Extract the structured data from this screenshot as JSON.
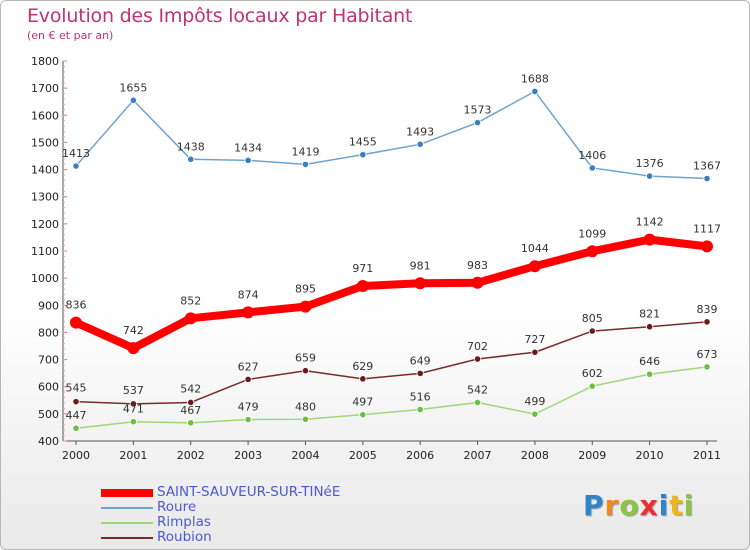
{
  "title": "Evolution des Impôts locaux par Habitant",
  "subtitle": "(en € et par an)",
  "chart_data": {
    "type": "line",
    "x": [
      "2000",
      "2001",
      "2002",
      "2003",
      "2004",
      "2005",
      "2006",
      "2007",
      "2008",
      "2009",
      "2010",
      "2011"
    ],
    "ylim": [
      400,
      1800
    ],
    "yticks": [
      400,
      500,
      600,
      700,
      800,
      900,
      1000,
      1100,
      1200,
      1300,
      1400,
      1500,
      1600,
      1700,
      1800
    ],
    "grid": false,
    "legend_position": "bottom-left",
    "series": [
      {
        "name": "SAINT-SAUVEUR-SUR-TINéE",
        "color": "#ff0000",
        "marker_color": "#ff0000",
        "values": [
          836,
          742,
          852,
          874,
          895,
          971,
          981,
          983,
          1044,
          1099,
          1142,
          1117
        ]
      },
      {
        "name": "Roure",
        "color": "#6fa3d0",
        "marker_color": "#3a7fc0",
        "values": [
          1413,
          1655,
          1438,
          1434,
          1419,
          1455,
          1493,
          1573,
          1688,
          1406,
          1376,
          1367
        ]
      },
      {
        "name": "Rimplas",
        "color": "#9ed77a",
        "marker_color": "#6cc040",
        "values": [
          447,
          471,
          467,
          479,
          480,
          497,
          516,
          542,
          499,
          602,
          646,
          673
        ]
      },
      {
        "name": "Roubion",
        "color": "#7a2a2a",
        "marker_color": "#6a1a1a",
        "values": [
          545,
          537,
          542,
          627,
          659,
          629,
          649,
          702,
          727,
          805,
          821,
          839
        ]
      }
    ]
  },
  "logo": {
    "letters": [
      {
        "ch": "P",
        "color": "#2e86c8"
      },
      {
        "ch": "r",
        "color": "#f08a1c"
      },
      {
        "ch": "o",
        "color": "#8cc63f"
      },
      {
        "ch": "x",
        "color": "#e8312f"
      },
      {
        "ch": "i",
        "color": "#2e86c8"
      },
      {
        "ch": "t",
        "color": "#f0b41c"
      },
      {
        "ch": "i",
        "color": "#8cc63f"
      }
    ]
  }
}
